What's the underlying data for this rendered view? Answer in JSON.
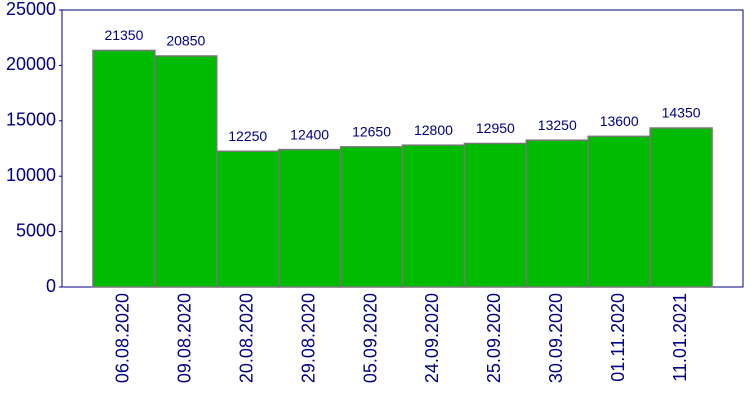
{
  "chart_data": {
    "type": "bar",
    "categories": [
      "06.08.2020",
      "09.08.2020",
      "20.08.2020",
      "29.08.2020",
      "05.09.2020",
      "24.09.2020",
      "25.09.2020",
      "30.09.2020",
      "01.11.2020",
      "11.01.2021"
    ],
    "values": [
      21350,
      20850,
      12250,
      12400,
      12650,
      12800,
      12950,
      13250,
      13600,
      14350
    ],
    "color": "#00bb00",
    "ylim": [
      0,
      25000
    ],
    "yticks": [
      0,
      5000,
      10000,
      15000,
      20000,
      25000
    ],
    "grid": false
  }
}
